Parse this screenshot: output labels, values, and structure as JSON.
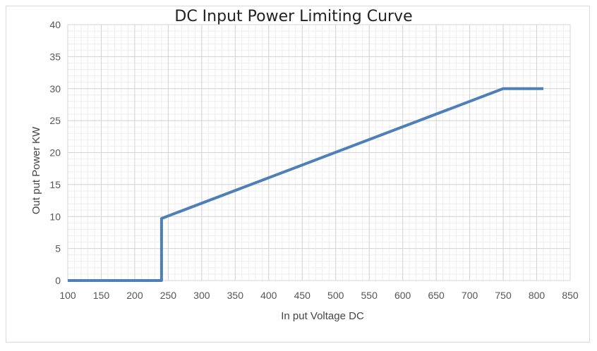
{
  "chart_data": {
    "type": "line",
    "title": "DC Input Power Limiting Curve",
    "xlabel": "In put Voltage DC",
    "ylabel": "Out put Power KW",
    "xlim": [
      100,
      850
    ],
    "ylim": [
      0,
      40
    ],
    "x_ticks": [
      100,
      150,
      200,
      250,
      300,
      350,
      400,
      450,
      500,
      550,
      600,
      650,
      700,
      750,
      800,
      850
    ],
    "y_ticks": [
      0,
      5,
      10,
      15,
      20,
      25,
      30,
      35,
      40
    ],
    "grid": true,
    "series": [
      {
        "x": [
          100,
          240,
          240,
          750,
          810
        ],
        "y": [
          0,
          0,
          9.7,
          30,
          30
        ],
        "color": "#4e7fb9"
      }
    ]
  }
}
